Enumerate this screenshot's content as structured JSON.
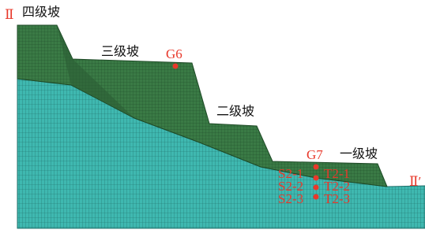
{
  "section": {
    "left_mark": "Ⅱ",
    "right_mark": "Ⅱ′"
  },
  "slopes": [
    "四级坡",
    "三级坡",
    "二级坡",
    "一级坡"
  ],
  "points": {
    "g6": "G6",
    "g7": "G7",
    "s": [
      "S2-1",
      "S2-2",
      "S2-3"
    ],
    "t": [
      "T2-1",
      "T2-2",
      "T2-3"
    ]
  }
}
